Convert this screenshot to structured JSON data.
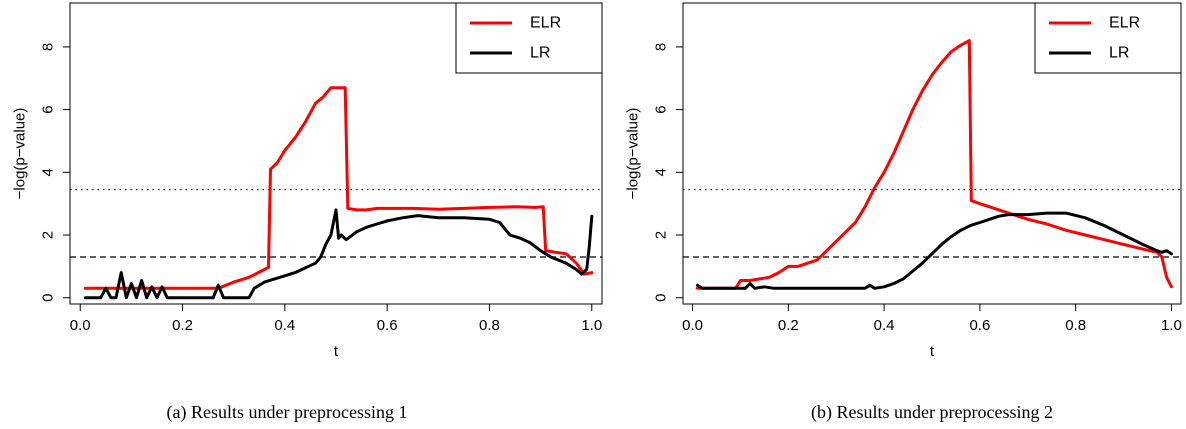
{
  "chart_data": [
    {
      "type": "line",
      "caption": "(a) Results under preprocessing 1",
      "xlabel": "t",
      "ylabel": "−log(p−value)",
      "xlim": [
        -0.02,
        1.02
      ],
      "ylim": [
        -0.2,
        9.4
      ],
      "xticks": [
        0.0,
        0.2,
        0.4,
        0.6,
        0.8,
        1.0
      ],
      "xtick_labels": [
        "0.0",
        "0.2",
        "0.4",
        "0.6",
        "0.8",
        "1.0"
      ],
      "yticks": [
        0,
        2,
        4,
        6,
        8
      ],
      "ytick_labels": [
        "0",
        "2",
        "4",
        "6",
        "8"
      ],
      "hlines": [
        {
          "y": 3.45,
          "style": "dotted"
        },
        {
          "y": 1.3,
          "style": "dashed"
        }
      ],
      "legend_position": "top-right",
      "series": [
        {
          "name": "ELR",
          "color": "#ff0000",
          "points": [
            [
              0.01,
              0.3
            ],
            [
              0.1,
              0.3
            ],
            [
              0.2,
              0.3
            ],
            [
              0.27,
              0.3
            ],
            [
              0.3,
              0.5
            ],
            [
              0.33,
              0.65
            ],
            [
              0.36,
              0.9
            ],
            [
              0.368,
              0.97
            ],
            [
              0.372,
              4.1
            ],
            [
              0.385,
              4.3
            ],
            [
              0.4,
              4.7
            ],
            [
              0.42,
              5.1
            ],
            [
              0.44,
              5.6
            ],
            [
              0.46,
              6.2
            ],
            [
              0.475,
              6.4
            ],
            [
              0.49,
              6.7
            ],
            [
              0.518,
              6.7
            ],
            [
              0.523,
              2.85
            ],
            [
              0.54,
              2.8
            ],
            [
              0.56,
              2.8
            ],
            [
              0.58,
              2.85
            ],
            [
              0.6,
              2.85
            ],
            [
              0.65,
              2.85
            ],
            [
              0.7,
              2.82
            ],
            [
              0.75,
              2.85
            ],
            [
              0.8,
              2.88
            ],
            [
              0.85,
              2.9
            ],
            [
              0.89,
              2.88
            ],
            [
              0.905,
              2.9
            ],
            [
              0.91,
              1.5
            ],
            [
              0.93,
              1.45
            ],
            [
              0.95,
              1.4
            ],
            [
              0.97,
              1.1
            ],
            [
              0.985,
              0.75
            ],
            [
              1.0,
              0.8
            ]
          ]
        },
        {
          "name": "LR",
          "color": "#000000",
          "points": [
            [
              0.01,
              0.0
            ],
            [
              0.04,
              0.0
            ],
            [
              0.05,
              0.3
            ],
            [
              0.06,
              0.0
            ],
            [
              0.07,
              0.0
            ],
            [
              0.08,
              0.8
            ],
            [
              0.09,
              0.0
            ],
            [
              0.1,
              0.45
            ],
            [
              0.11,
              0.0
            ],
            [
              0.12,
              0.55
            ],
            [
              0.13,
              0.0
            ],
            [
              0.14,
              0.35
            ],
            [
              0.15,
              0.0
            ],
            [
              0.16,
              0.35
            ],
            [
              0.17,
              0.0
            ],
            [
              0.2,
              0.0
            ],
            [
              0.26,
              0.0
            ],
            [
              0.27,
              0.4
            ],
            [
              0.28,
              0.0
            ],
            [
              0.33,
              0.0
            ],
            [
              0.34,
              0.3
            ],
            [
              0.36,
              0.5
            ],
            [
              0.38,
              0.6
            ],
            [
              0.4,
              0.7
            ],
            [
              0.42,
              0.8
            ],
            [
              0.44,
              0.95
            ],
            [
              0.46,
              1.1
            ],
            [
              0.47,
              1.3
            ],
            [
              0.48,
              1.7
            ],
            [
              0.49,
              2.0
            ],
            [
              0.5,
              2.8
            ],
            [
              0.505,
              1.9
            ],
            [
              0.51,
              2.0
            ],
            [
              0.52,
              1.85
            ],
            [
              0.54,
              2.1
            ],
            [
              0.56,
              2.25
            ],
            [
              0.58,
              2.35
            ],
            [
              0.6,
              2.45
            ],
            [
              0.63,
              2.55
            ],
            [
              0.66,
              2.62
            ],
            [
              0.7,
              2.55
            ],
            [
              0.75,
              2.55
            ],
            [
              0.8,
              2.5
            ],
            [
              0.82,
              2.4
            ],
            [
              0.84,
              2.0
            ],
            [
              0.86,
              1.9
            ],
            [
              0.88,
              1.75
            ],
            [
              0.9,
              1.5
            ],
            [
              0.92,
              1.3
            ],
            [
              0.95,
              1.1
            ],
            [
              0.97,
              0.9
            ],
            [
              0.98,
              0.75
            ],
            [
              0.99,
              0.9
            ],
            [
              0.995,
              1.6
            ],
            [
              1.0,
              2.6
            ]
          ]
        }
      ]
    },
    {
      "type": "line",
      "caption": "(b) Results under preprocessing 2",
      "xlabel": "t",
      "ylabel": "−log(p−value)",
      "xlim": [
        -0.02,
        1.02
      ],
      "ylim": [
        -0.2,
        9.4
      ],
      "xticks": [
        0.0,
        0.2,
        0.4,
        0.6,
        0.8,
        1.0
      ],
      "xtick_labels": [
        "0.0",
        "0.2",
        "0.4",
        "0.6",
        "0.8",
        "1.0"
      ],
      "yticks": [
        0,
        2,
        4,
        6,
        8
      ],
      "ytick_labels": [
        "0",
        "2",
        "4",
        "6",
        "8"
      ],
      "hlines": [
        {
          "y": 3.45,
          "style": "dotted"
        },
        {
          "y": 1.3,
          "style": "dashed"
        }
      ],
      "legend_position": "top-right",
      "series": [
        {
          "name": "ELR",
          "color": "#ff0000",
          "points": [
            [
              0.01,
              0.3
            ],
            [
              0.05,
              0.3
            ],
            [
              0.09,
              0.3
            ],
            [
              0.1,
              0.55
            ],
            [
              0.12,
              0.55
            ],
            [
              0.14,
              0.6
            ],
            [
              0.16,
              0.65
            ],
            [
              0.18,
              0.8
            ],
            [
              0.2,
              1.0
            ],
            [
              0.22,
              1.0
            ],
            [
              0.24,
              1.1
            ],
            [
              0.26,
              1.2
            ],
            [
              0.28,
              1.5
            ],
            [
              0.3,
              1.8
            ],
            [
              0.32,
              2.1
            ],
            [
              0.34,
              2.4
            ],
            [
              0.36,
              2.9
            ],
            [
              0.38,
              3.5
            ],
            [
              0.4,
              4.0
            ],
            [
              0.42,
              4.6
            ],
            [
              0.44,
              5.3
            ],
            [
              0.46,
              6.0
            ],
            [
              0.48,
              6.6
            ],
            [
              0.5,
              7.1
            ],
            [
              0.52,
              7.5
            ],
            [
              0.54,
              7.85
            ],
            [
              0.56,
              8.05
            ],
            [
              0.578,
              8.2
            ],
            [
              0.582,
              3.1
            ],
            [
              0.6,
              3.0
            ],
            [
              0.62,
              2.9
            ],
            [
              0.64,
              2.8
            ],
            [
              0.66,
              2.7
            ],
            [
              0.7,
              2.5
            ],
            [
              0.74,
              2.35
            ],
            [
              0.78,
              2.15
            ],
            [
              0.82,
              2.0
            ],
            [
              0.86,
              1.85
            ],
            [
              0.9,
              1.7
            ],
            [
              0.94,
              1.55
            ],
            [
              0.97,
              1.45
            ],
            [
              0.98,
              1.3
            ],
            [
              0.99,
              0.65
            ],
            [
              1.0,
              0.35
            ]
          ]
        },
        {
          "name": "LR",
          "color": "#000000",
          "points": [
            [
              0.01,
              0.4
            ],
            [
              0.02,
              0.3
            ],
            [
              0.1,
              0.3
            ],
            [
              0.11,
              0.3
            ],
            [
              0.12,
              0.45
            ],
            [
              0.13,
              0.3
            ],
            [
              0.15,
              0.35
            ],
            [
              0.17,
              0.3
            ],
            [
              0.2,
              0.3
            ],
            [
              0.25,
              0.3
            ],
            [
              0.3,
              0.3
            ],
            [
              0.36,
              0.3
            ],
            [
              0.37,
              0.4
            ],
            [
              0.38,
              0.3
            ],
            [
              0.4,
              0.35
            ],
            [
              0.42,
              0.45
            ],
            [
              0.44,
              0.6
            ],
            [
              0.46,
              0.85
            ],
            [
              0.48,
              1.1
            ],
            [
              0.5,
              1.4
            ],
            [
              0.52,
              1.7
            ],
            [
              0.54,
              1.95
            ],
            [
              0.56,
              2.15
            ],
            [
              0.58,
              2.3
            ],
            [
              0.6,
              2.4
            ],
            [
              0.62,
              2.5
            ],
            [
              0.64,
              2.6
            ],
            [
              0.66,
              2.65
            ],
            [
              0.7,
              2.65
            ],
            [
              0.74,
              2.7
            ],
            [
              0.78,
              2.7
            ],
            [
              0.82,
              2.55
            ],
            [
              0.86,
              2.3
            ],
            [
              0.9,
              2.0
            ],
            [
              0.94,
              1.7
            ],
            [
              0.97,
              1.5
            ],
            [
              0.98,
              1.45
            ],
            [
              0.99,
              1.5
            ],
            [
              1.0,
              1.4
            ]
          ]
        }
      ]
    }
  ]
}
